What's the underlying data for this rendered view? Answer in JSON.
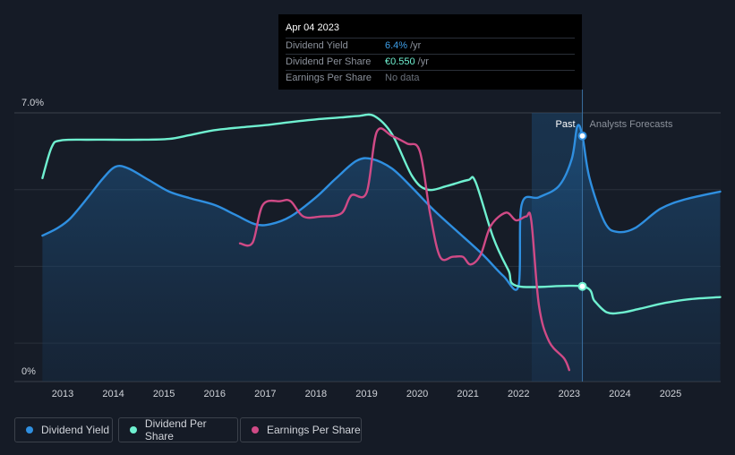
{
  "tooltip": {
    "date": "Apr 04 2023",
    "rows": [
      {
        "label": "Dividend Yield",
        "value": "6.4%",
        "unit": "/yr"
      },
      {
        "label": "Dividend Per Share",
        "value": "€0.550",
        "unit": "/yr"
      },
      {
        "label": "Earnings Per Share",
        "value": "No data",
        "unit": ""
      }
    ]
  },
  "legend": [
    {
      "label": "Dividend Yield",
      "color": "#2f8fe0"
    },
    {
      "label": "Dividend Per Share",
      "color": "#6ff0d0"
    },
    {
      "label": "Earnings Per Share",
      "color": "#d04a86"
    }
  ],
  "colors": {
    "background": "#151b26",
    "yield_line": "#2f8fe0",
    "dps_line": "#6ff0d0",
    "eps_line": "#d04a86",
    "grid": "#2a303b",
    "past_band": "#1b3a5c"
  },
  "chart_data": {
    "type": "line",
    "y_axis": {
      "top_label": "7.0%",
      "bottom_label": "0%",
      "ylim": [
        0,
        7.0
      ],
      "unit": "%"
    },
    "x_axis": {
      "ticks": [
        "2013",
        "2014",
        "2015",
        "2016",
        "2017",
        "2018",
        "2019",
        "2020",
        "2021",
        "2022",
        "2023",
        "2024",
        "2025"
      ],
      "xlim": [
        2012.6,
        2026.0
      ]
    },
    "grid": true,
    "region_labels": {
      "past": "Past",
      "forecast": "Analysts Forecasts"
    },
    "forecast_start": 2023.26,
    "highlight_start": 2022.26,
    "series": [
      {
        "name": "Dividend Yield",
        "unit": "%",
        "points": [
          [
            2012.6,
            3.8
          ],
          [
            2012.9,
            4.0
          ],
          [
            2013.15,
            4.25
          ],
          [
            2013.5,
            4.8
          ],
          [
            2013.8,
            5.3
          ],
          [
            2014.05,
            5.6
          ],
          [
            2014.3,
            5.55
          ],
          [
            2014.7,
            5.25
          ],
          [
            2015.1,
            4.95
          ],
          [
            2015.5,
            4.78
          ],
          [
            2016.0,
            4.6
          ],
          [
            2016.4,
            4.35
          ],
          [
            2016.8,
            4.1
          ],
          [
            2017.1,
            4.1
          ],
          [
            2017.5,
            4.3
          ],
          [
            2018.0,
            4.8
          ],
          [
            2018.4,
            5.3
          ],
          [
            2018.8,
            5.75
          ],
          [
            2019.1,
            5.8
          ],
          [
            2019.5,
            5.55
          ],
          [
            2019.9,
            5.05
          ],
          [
            2020.3,
            4.5
          ],
          [
            2020.8,
            3.9
          ],
          [
            2021.3,
            3.3
          ],
          [
            2021.7,
            2.75
          ],
          [
            2022.0,
            2.5
          ],
          [
            2022.06,
            4.6
          ],
          [
            2022.4,
            4.8
          ],
          [
            2022.8,
            5.1
          ],
          [
            2023.05,
            5.8
          ],
          [
            2023.16,
            6.65
          ],
          [
            2023.26,
            6.4
          ],
          [
            2023.4,
            5.3
          ],
          [
            2023.7,
            4.15
          ],
          [
            2023.95,
            3.9
          ],
          [
            2024.3,
            4.0
          ],
          [
            2024.8,
            4.5
          ],
          [
            2025.3,
            4.75
          ],
          [
            2025.98,
            4.95
          ]
        ]
      },
      {
        "name": "Dividend Per Share",
        "unit": "€",
        "points": [
          [
            2012.6,
            5.3
          ],
          [
            2012.78,
            6.1
          ],
          [
            2012.95,
            6.28
          ],
          [
            2013.5,
            6.3
          ],
          [
            2014.0,
            6.3
          ],
          [
            2014.5,
            6.3
          ],
          [
            2015.1,
            6.32
          ],
          [
            2015.5,
            6.42
          ],
          [
            2016.0,
            6.55
          ],
          [
            2016.5,
            6.62
          ],
          [
            2017.0,
            6.68
          ],
          [
            2017.5,
            6.76
          ],
          [
            2018.0,
            6.83
          ],
          [
            2018.5,
            6.88
          ],
          [
            2018.85,
            6.92
          ],
          [
            2019.15,
            6.92
          ],
          [
            2019.5,
            6.45
          ],
          [
            2019.9,
            5.35
          ],
          [
            2020.2,
            5.0
          ],
          [
            2020.6,
            5.1
          ],
          [
            2021.0,
            5.25
          ],
          [
            2021.15,
            5.2
          ],
          [
            2021.5,
            3.75
          ],
          [
            2021.8,
            2.9
          ],
          [
            2022.0,
            2.48
          ],
          [
            2023.26,
            2.48
          ],
          [
            2023.5,
            2.1
          ],
          [
            2023.75,
            1.8
          ],
          [
            2024.05,
            1.8
          ],
          [
            2024.4,
            1.9
          ],
          [
            2024.9,
            2.05
          ],
          [
            2025.4,
            2.15
          ],
          [
            2025.98,
            2.2
          ]
        ]
      },
      {
        "name": "Earnings Per Share",
        "unit": "€",
        "points": [
          [
            2016.5,
            3.6
          ],
          [
            2016.75,
            3.62
          ],
          [
            2016.95,
            4.6
          ],
          [
            2017.3,
            4.7
          ],
          [
            2017.5,
            4.7
          ],
          [
            2017.75,
            4.3
          ],
          [
            2018.1,
            4.3
          ],
          [
            2018.5,
            4.38
          ],
          [
            2018.7,
            4.85
          ],
          [
            2019.0,
            4.92
          ],
          [
            2019.2,
            6.5
          ],
          [
            2019.5,
            6.4
          ],
          [
            2019.8,
            6.2
          ],
          [
            2020.05,
            6.0
          ],
          [
            2020.25,
            4.4
          ],
          [
            2020.45,
            3.25
          ],
          [
            2020.7,
            3.25
          ],
          [
            2020.9,
            3.25
          ],
          [
            2021.05,
            3.05
          ],
          [
            2021.25,
            3.3
          ],
          [
            2021.45,
            4.05
          ],
          [
            2021.75,
            4.4
          ],
          [
            2021.95,
            4.2
          ],
          [
            2022.15,
            4.3
          ],
          [
            2022.25,
            4.2
          ],
          [
            2022.4,
            2.0
          ],
          [
            2022.6,
            1.05
          ],
          [
            2022.9,
            0.6
          ],
          [
            2023.0,
            0.3
          ]
        ]
      }
    ],
    "markers": [
      {
        "series": "Dividend Yield",
        "x": 2023.26,
        "y": 6.4
      },
      {
        "series": "Dividend Per Share",
        "x": 2023.26,
        "y": 2.48
      }
    ]
  }
}
